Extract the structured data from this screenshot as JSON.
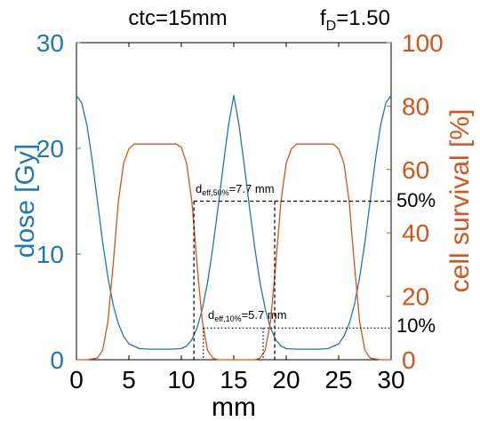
{
  "title": {
    "ctc": "ctc=15mm",
    "fd_main": "f",
    "fd_sub": "D",
    "fd_value": "=1.50"
  },
  "colors": {
    "dose": "#1f77b4",
    "survival": "#d95319",
    "axis": "#000000",
    "bg": "#ffffff"
  },
  "chart_data": {
    "type": "line",
    "xlabel": "mm",
    "ylabel_left": "dose [Gy]",
    "ylabel_right": "cell survival [%]",
    "xlim": [
      0,
      30
    ],
    "ylim_left": [
      0,
      30
    ],
    "ylim_right": [
      0,
      100
    ],
    "xticks": [
      0,
      5,
      10,
      15,
      20,
      25,
      30
    ],
    "yticks_left": [
      0,
      10,
      20,
      30
    ],
    "yticks_right": [
      0,
      20,
      40,
      60,
      80,
      100
    ],
    "grid": false,
    "series": [
      {
        "name": "dose [Gy]",
        "axis": "left",
        "color": "#1f77b4",
        "x": [
          0,
          0.5,
          1,
          1.5,
          2,
          2.5,
          3,
          3.5,
          4,
          4.5,
          5,
          6,
          7,
          8,
          9,
          10,
          10.5,
          11,
          11.5,
          12,
          12.5,
          13,
          13.5,
          14,
          14.5,
          15,
          15.5,
          16,
          16.5,
          17,
          17.5,
          18,
          18.5,
          19,
          19.5,
          20,
          21,
          22,
          23,
          24,
          25,
          25.5,
          26,
          26.5,
          27,
          27.5,
          28,
          28.5,
          29,
          29.5,
          30
        ],
        "values": [
          25.0,
          24.3,
          22.2,
          18.9,
          15.0,
          11.1,
          7.8,
          5.2,
          3.4,
          2.2,
          1.5,
          1.05,
          1.0,
          1.0,
          1.0,
          1.05,
          1.3,
          1.9,
          3.0,
          4.8,
          7.3,
          10.6,
          14.4,
          18.4,
          22.2,
          25.0,
          22.2,
          18.4,
          14.4,
          10.6,
          7.3,
          4.8,
          3.0,
          1.9,
          1.3,
          1.05,
          1.0,
          1.0,
          1.0,
          1.05,
          1.5,
          2.2,
          3.4,
          5.2,
          7.8,
          11.1,
          15.0,
          18.9,
          22.2,
          24.3,
          25.0
        ]
      },
      {
        "name": "cell survival [%]",
        "axis": "right",
        "color": "#d95319",
        "x": [
          0,
          1,
          2,
          2.5,
          3,
          3.5,
          4,
          4.5,
          5,
          5.5,
          6,
          8,
          9,
          9.5,
          10,
          10.5,
          11,
          11.5,
          12,
          12.5,
          13,
          13.5,
          14,
          14.5,
          15,
          15.5,
          16,
          16.5,
          17,
          17.5,
          18,
          18.5,
          19,
          19.5,
          20,
          20.5,
          21,
          22,
          24,
          24.5,
          25,
          25.5,
          26,
          26.5,
          27,
          27.5,
          28,
          29,
          30
        ],
        "values": [
          0,
          0,
          0.5,
          3,
          12,
          30,
          50,
          62,
          66.5,
          68,
          68,
          68,
          68,
          68,
          67,
          62,
          50,
          30,
          12,
          3,
          0.5,
          0,
          0,
          0,
          0,
          0,
          0,
          0,
          0,
          0.5,
          3,
          12,
          30,
          50,
          62,
          66.5,
          68,
          68,
          68,
          68,
          66.5,
          62,
          50,
          30,
          12,
          3,
          0.5,
          0,
          0
        ]
      }
    ],
    "annotations": {
      "fifty": {
        "label_main": "d",
        "label_sub": "eff,50%",
        "label_value": "=7.7 mm",
        "level_pct": 50,
        "pct_label": "50%",
        "x1": 11.2,
        "x2": 18.9
      },
      "ten": {
        "label_main": "d",
        "label_sub": "eff,10%",
        "label_value": "=5.7 mm",
        "level_pct": 10,
        "pct_label": "10%",
        "x1": 12.1,
        "x2": 17.8
      }
    }
  }
}
